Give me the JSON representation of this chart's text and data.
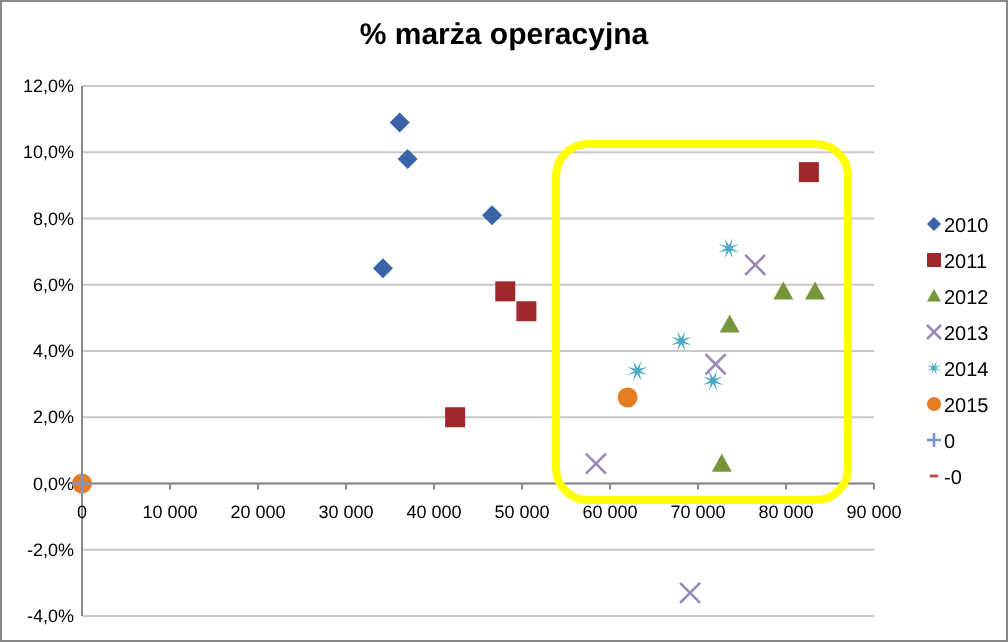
{
  "chart_data": {
    "type": "scatter",
    "title": "% marża operacyjna",
    "xlim": [
      0,
      90000
    ],
    "xticks": [
      {
        "value": 0,
        "label": "0"
      },
      {
        "value": 10000,
        "label": "10 000"
      },
      {
        "value": 20000,
        "label": "20 000"
      },
      {
        "value": 30000,
        "label": "30 000"
      },
      {
        "value": 40000,
        "label": "40 000"
      },
      {
        "value": 50000,
        "label": "50 000"
      },
      {
        "value": 60000,
        "label": "60 000"
      },
      {
        "value": 70000,
        "label": "70 000"
      },
      {
        "value": 80000,
        "label": "80 000"
      },
      {
        "value": 90000,
        "label": "90 000"
      }
    ],
    "ylim": [
      -4,
      12
    ],
    "yticks": [
      {
        "value": -4,
        "label": "-4,0%"
      },
      {
        "value": -2,
        "label": "-2,0%"
      },
      {
        "value": 0,
        "label": "0,0%"
      },
      {
        "value": 2,
        "label": "2,0%"
      },
      {
        "value": 4,
        "label": "4,0%"
      },
      {
        "value": 6,
        "label": "6,0%"
      },
      {
        "value": 8,
        "label": "8,0%"
      },
      {
        "value": 10,
        "label": "10,0%"
      },
      {
        "value": 12,
        "label": "12,0%"
      }
    ],
    "grid": "y",
    "legend": "right",
    "series": [
      {
        "name": "2010",
        "color": "#3a64a8",
        "marker": "diamond",
        "x": [
          36100,
          37000,
          46600,
          34200
        ],
        "values": [
          10.9,
          9.8,
          8.1,
          6.5
        ]
      },
      {
        "name": "2011",
        "color": "#a0282c",
        "marker": "square",
        "x": [
          48100,
          50500,
          42400,
          82600
        ],
        "values": [
          5.8,
          5.2,
          2.0,
          9.4
        ]
      },
      {
        "name": "2012",
        "color": "#76963a",
        "marker": "triangle",
        "x": [
          79700,
          83300,
          73600,
          72700
        ],
        "values": [
          5.8,
          5.8,
          4.8,
          0.6
        ]
      },
      {
        "name": "2013",
        "color": "#9b88b8",
        "marker": "cross",
        "x": [
          76500,
          72000,
          58400,
          69100
        ],
        "values": [
          6.6,
          3.6,
          0.6,
          -3.3
        ]
      },
      {
        "name": "2014",
        "color": "#4aa9c4",
        "marker": "star",
        "x": [
          73500,
          68100,
          63100,
          71700
        ],
        "values": [
          7.1,
          4.3,
          3.4,
          3.1
        ]
      },
      {
        "name": "2015",
        "color": "#e47c24",
        "marker": "circle",
        "x": [
          0,
          62000
        ],
        "values": [
          0,
          2.6
        ]
      },
      {
        "name": "0",
        "color": "#7d96c8",
        "marker": "plus",
        "x": [
          0
        ],
        "values": [
          0
        ]
      },
      {
        "name": "-0",
        "color": "#c0504d",
        "marker": "none"
      }
    ]
  }
}
